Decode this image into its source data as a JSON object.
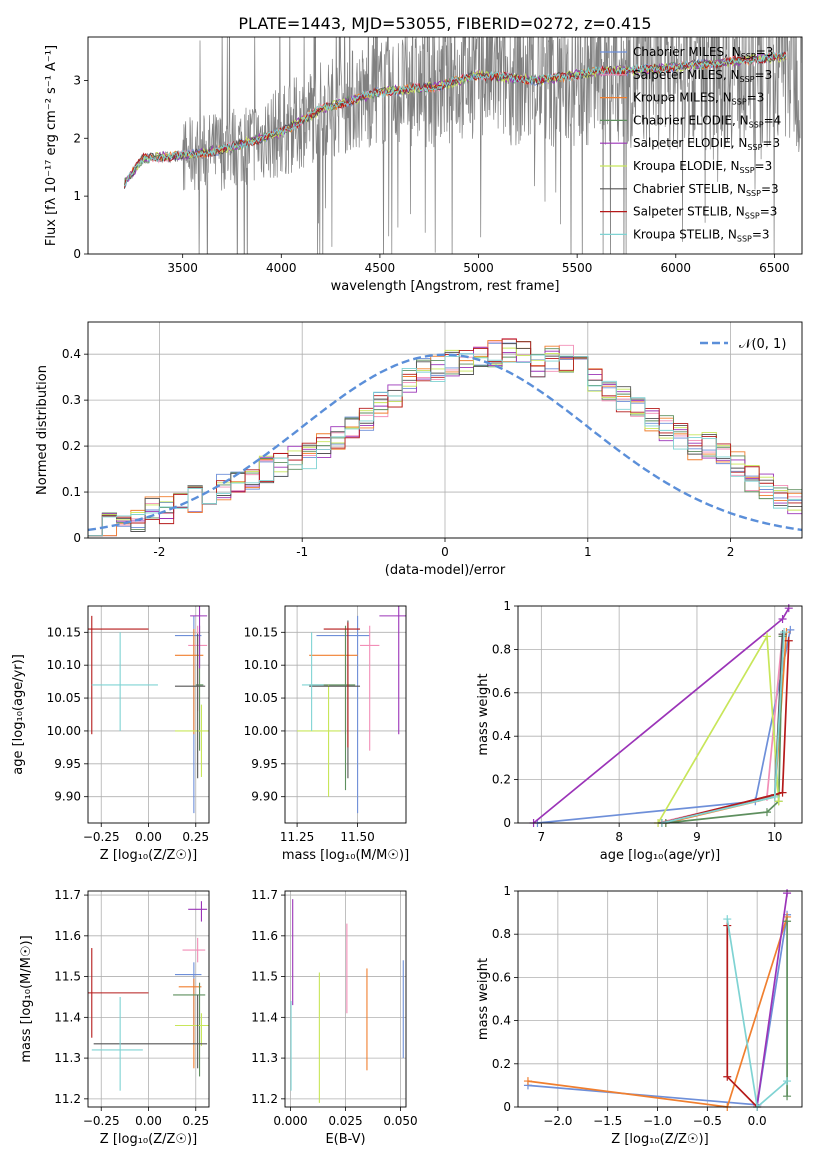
{
  "figure": {
    "title": "PLATE=1443, MJD=53055, FIBERID=0272, z=0.415"
  },
  "colors": {
    "Chabrier MILES": "#6e8fd9",
    "Salpeter MILES": "#f28eb7",
    "Kroupa MILES": "#f07f2f",
    "Chabrier ELODIE": "#5e8f5e",
    "Salpeter ELODIE": "#9b34b8",
    "Kroupa ELODIE": "#c8e65a",
    "Chabrier STELIB": "#555555",
    "Salpeter STELIB": "#b51a1a",
    "Kroupa STELIB": "#7fd3d3",
    "data": "#808080",
    "normal": "#5b8fd9"
  },
  "chart_data": [
    {
      "type": "line",
      "title": "PLATE=1443, MJD=53055, FIBERID=0272, z=0.415",
      "xlabel": "wavelength [Angstrom, rest frame]",
      "ylabel": "Flux [fλ 10⁻¹⁷ erg cm⁻² s⁻¹ A⁻¹]",
      "xlim": [
        3020,
        6640
      ],
      "ylim": [
        0,
        3.75
      ],
      "xticks": [
        3500,
        4000,
        4500,
        5000,
        5500,
        6000,
        6500
      ],
      "yticks": [
        0,
        1,
        2,
        3
      ],
      "legend_position": "top-right",
      "legend": [
        "Chabrier MILES, N_SSP=3",
        "Salpeter MILES, N_SSP=3",
        "Kroupa MILES, N_SSP=3",
        "Chabrier ELODIE, N_SSP=4",
        "Salpeter ELODIE, N_SSP=3",
        "Kroupa ELODIE, N_SSP=3",
        "Chabrier STELIB, N_SSP=3",
        "Salpeter STELIB, N_SSP=3",
        "Kroupa STELIB, N_SSP=3"
      ],
      "continuum_x": [
        3200,
        3300,
        3500,
        3700,
        3900,
        4000,
        4200,
        4500,
        4800,
        5000,
        5300,
        5600,
        5900,
        6200,
        6500
      ],
      "continuum_y": [
        1.2,
        1.65,
        1.7,
        1.8,
        2.0,
        2.1,
        2.5,
        2.8,
        2.9,
        3.1,
        3.0,
        3.15,
        3.2,
        3.3,
        3.4
      ],
      "noise_start": 3500
    },
    {
      "type": "bar",
      "title": "",
      "xlabel": "(data-model)/error",
      "ylabel": "Normed distribution",
      "xlim": [
        -2.5,
        2.5
      ],
      "ylim": [
        0,
        0.47
      ],
      "xticks": [
        -2,
        -1,
        0,
        1,
        2
      ],
      "yticks": [
        0.0,
        0.1,
        0.2,
        0.3,
        0.4
      ],
      "legend_position": "top-right",
      "legend": [
        "𝒩(0, 1)"
      ],
      "bin_width": 0.1,
      "bin_start": -2.5,
      "base_hist": [
        0.02,
        0.025,
        0.03,
        0.04,
        0.06,
        0.06,
        0.07,
        0.085,
        0.1,
        0.11,
        0.12,
        0.13,
        0.15,
        0.16,
        0.17,
        0.18,
        0.2,
        0.22,
        0.24,
        0.26,
        0.29,
        0.31,
        0.34,
        0.37,
        0.37,
        0.38,
        0.38,
        0.39,
        0.4,
        0.41,
        0.4,
        0.38,
        0.39,
        0.39,
        0.37,
        0.34,
        0.32,
        0.3,
        0.28,
        0.26,
        0.24,
        0.22,
        0.2,
        0.2,
        0.18,
        0.16,
        0.13,
        0.11,
        0.09,
        0.08,
        0.06,
        0.05,
        0.04,
        0.03,
        0.025,
        0.02,
        0.02,
        0.02
      ]
    },
    {
      "type": "scatter",
      "xlabel": "Z [log₁₀(Z/Z☉)]",
      "ylabel": "age  [log₁₀(age/yr)]",
      "xlim": [
        -0.32,
        0.32
      ],
      "ylim": [
        9.86,
        10.19
      ],
      "xticks": [
        -0.25,
        0.0,
        0.25
      ],
      "xticklabels": [
        "−0.25",
        "0.00",
        "0.25"
      ],
      "yticks": [
        9.9,
        9.95,
        10.0,
        10.05,
        10.1,
        10.15
      ],
      "yticklabels": [
        "9.90",
        "9.95",
        "10.00",
        "10.05",
        "10.10",
        "10.15"
      ],
      "points": [
        {
          "model": "Chabrier MILES",
          "x": 0.24,
          "y": 10.145,
          "xerr": [
            0.1,
            0.04
          ],
          "yerr": [
            0.27,
            0.03
          ]
        },
        {
          "model": "Salpeter MILES",
          "x": 0.26,
          "y": 10.13,
          "xerr": [
            0.05,
            0.05
          ],
          "yerr": [
            0.1,
            0.03
          ]
        },
        {
          "model": "Kroupa MILES",
          "x": 0.24,
          "y": 10.115,
          "xerr": [
            0.1,
            0.05
          ],
          "yerr": [
            0.12,
            0.04
          ]
        },
        {
          "model": "Chabrier ELODIE",
          "x": 0.27,
          "y": 10.07,
          "xerr": [
            0.02,
            0.02
          ],
          "yerr": [
            0.1,
            0.09
          ]
        },
        {
          "model": "Salpeter ELODIE",
          "x": 0.27,
          "y": 10.175,
          "xerr": [
            0.05,
            0.04
          ],
          "yerr": [
            0.08,
            0.02
          ]
        },
        {
          "model": "Kroupa ELODIE",
          "x": 0.28,
          "y": 10.0,
          "xerr": [
            0.14,
            0.05
          ],
          "yerr": [
            0.07,
            0.04
          ]
        },
        {
          "model": "Chabrier STELIB",
          "x": 0.26,
          "y": 10.068,
          "xerr": [
            0.12,
            0.04
          ],
          "yerr": [
            0.14,
            0.08
          ]
        },
        {
          "model": "Salpeter STELIB",
          "x": -0.3,
          "y": 10.155,
          "xerr": [
            0.02,
            0.3
          ],
          "yerr": [
            0.16,
            0.02
          ]
        },
        {
          "model": "Kroupa STELIB",
          "x": -0.15,
          "y": 10.07,
          "xerr": [
            0.15,
            0.2
          ],
          "yerr": [
            0.07,
            0.08
          ]
        }
      ]
    },
    {
      "type": "scatter",
      "xlabel": "mass [log₁₀(M/M☉)]",
      "ylabel": "",
      "xlim": [
        11.2,
        11.7
      ],
      "ylim": [
        9.86,
        10.19
      ],
      "xticks": [
        11.25,
        11.5
      ],
      "xticklabels": [
        "11.25",
        "11.50"
      ],
      "yticks": [
        9.9,
        9.95,
        10.0,
        10.05,
        10.1,
        10.15
      ],
      "yticklabels": [
        "9.90",
        "9.95",
        "10.00",
        "10.05",
        "10.10",
        "10.15"
      ],
      "points": [
        {
          "model": "Chabrier MILES",
          "x": 11.5,
          "y": 10.145,
          "xerr": [
            0.17,
            0.05
          ],
          "yerr": [
            0.27,
            0.03
          ]
        },
        {
          "model": "Salpeter MILES",
          "x": 11.55,
          "y": 10.13,
          "xerr": [
            0.04,
            0.04
          ],
          "yerr": [
            0.16,
            0.03
          ]
        },
        {
          "model": "Kroupa MILES",
          "x": 11.45,
          "y": 10.115,
          "xerr": [
            0.15,
            0.05
          ],
          "yerr": [
            0.12,
            0.04
          ]
        },
        {
          "model": "Chabrier ELODIE",
          "x": 11.45,
          "y": 10.07,
          "xerr": [
            0.15,
            0.04
          ],
          "yerr": [
            0.16,
            0.09
          ]
        },
        {
          "model": "Salpeter ELODIE",
          "x": 11.67,
          "y": 10.175,
          "xerr": [
            0.08,
            0.03
          ],
          "yerr": [
            0.18,
            0.02
          ]
        },
        {
          "model": "Kroupa ELODIE",
          "x": 11.38,
          "y": 10.0,
          "xerr": [
            0.13,
            0.05
          ],
          "yerr": [
            0.1,
            0.07
          ]
        },
        {
          "model": "Chabrier STELIB",
          "x": 11.46,
          "y": 10.068,
          "xerr": [
            0.16,
            0.05
          ],
          "yerr": [
            0.14,
            0.1
          ]
        },
        {
          "model": "Salpeter STELIB",
          "x": 11.46,
          "y": 10.155,
          "xerr": [
            0.1,
            0.05
          ],
          "yerr": [
            0.18,
            0.01
          ]
        },
        {
          "model": "Kroupa STELIB",
          "x": 11.31,
          "y": 10.07,
          "xerr": [
            0.04,
            0.05
          ],
          "yerr": [
            0.07,
            0.08
          ]
        }
      ]
    },
    {
      "type": "line",
      "xlabel": "age  [log₁₀(age/yr)]",
      "ylabel": "mass weight",
      "xlim": [
        6.7,
        10.35
      ],
      "ylim": [
        0,
        1.0
      ],
      "xticks": [
        7,
        8,
        9,
        10
      ],
      "yticks": [
        0.0,
        0.2,
        0.4,
        0.6,
        0.8,
        1.0
      ],
      "series": [
        {
          "model": "Chabrier MILES",
          "x": [
            6.95,
            9.75,
            10.2
          ],
          "y": [
            0.0,
            0.1,
            0.89
          ]
        },
        {
          "model": "Salpeter MILES",
          "x": [
            8.5,
            9.9,
            10.1
          ],
          "y": [
            0.0,
            0.12,
            0.87
          ]
        },
        {
          "model": "Kroupa MILES",
          "x": [
            8.6,
            10.0,
            10.15
          ],
          "y": [
            0.0,
            0.12,
            0.88
          ]
        },
        {
          "model": "Chabrier ELODIE",
          "x": [
            8.6,
            9.9,
            10.05,
            10.1
          ],
          "y": [
            0.0,
            0.05,
            0.1,
            0.86
          ]
        },
        {
          "model": "Salpeter ELODIE",
          "x": [
            6.9,
            10.1,
            10.18
          ],
          "y": [
            0.0,
            0.94,
            0.99
          ]
        },
        {
          "model": "Kroupa ELODIE",
          "x": [
            8.5,
            9.9,
            10.05
          ],
          "y": [
            0.0,
            0.86,
            0.1
          ]
        },
        {
          "model": "Chabrier STELIB",
          "x": [
            8.55,
            10.0,
            10.1
          ],
          "y": [
            0.0,
            0.13,
            0.87
          ]
        },
        {
          "model": "Salpeter STELIB",
          "x": [
            8.55,
            10.1,
            10.18
          ],
          "y": [
            0.0,
            0.14,
            0.84
          ]
        },
        {
          "model": "Kroupa STELIB",
          "x": [
            8.55,
            10.0,
            10.12
          ],
          "y": [
            0.0,
            0.12,
            0.88
          ]
        }
      ]
    },
    {
      "type": "scatter",
      "xlabel": "Z [log₁₀(Z/Z☉)]",
      "ylabel": "mass [log₁₀(M/M☉)]",
      "xlim": [
        -0.32,
        0.32
      ],
      "ylim": [
        11.18,
        11.71
      ],
      "xticks": [
        -0.25,
        0.0,
        0.25
      ],
      "xticklabels": [
        "−0.25",
        "0.00",
        "0.25"
      ],
      "yticks": [
        11.2,
        11.3,
        11.4,
        11.5,
        11.6,
        11.7
      ],
      "yticklabels": [
        "11.2",
        "11.3",
        "11.4",
        "11.5",
        "11.6",
        "11.7"
      ],
      "points": [
        {
          "model": "Chabrier MILES",
          "x": 0.24,
          "y": 11.505,
          "xerr": [
            0.1,
            0.04
          ],
          "yerr": [
            0.17,
            0.03
          ]
        },
        {
          "model": "Salpeter MILES",
          "x": 0.26,
          "y": 11.565,
          "xerr": [
            0.08,
            0.04
          ],
          "yerr": [
            0.03,
            0.03
          ]
        },
        {
          "model": "Kroupa MILES",
          "x": 0.24,
          "y": 11.475,
          "xerr": [
            0.08,
            0.04
          ],
          "yerr": [
            0.2,
            0.02
          ]
        },
        {
          "model": "Chabrier ELODIE",
          "x": 0.27,
          "y": 11.455,
          "xerr": [
            0.14,
            0.03
          ],
          "yerr": [
            0.2,
            0.03
          ]
        },
        {
          "model": "Salpeter ELODIE",
          "x": 0.28,
          "y": 11.665,
          "xerr": [
            0.07,
            0.03
          ],
          "yerr": [
            0.03,
            0.02
          ]
        },
        {
          "model": "Kroupa ELODIE",
          "x": 0.28,
          "y": 11.38,
          "xerr": [
            0.14,
            0.05
          ],
          "yerr": [
            0.05,
            0.03
          ]
        },
        {
          "model": "Chabrier STELIB",
          "x": 0.26,
          "y": 11.335,
          "xerr": [
            0.55,
            0.05
          ],
          "yerr": [
            0.06,
            0.12
          ]
        },
        {
          "model": "Salpeter STELIB",
          "x": -0.3,
          "y": 11.46,
          "xerr": [
            0.02,
            0.3
          ],
          "yerr": [
            0.11,
            0.11
          ]
        },
        {
          "model": "Kroupa STELIB",
          "x": -0.15,
          "y": 11.32,
          "xerr": [
            0.15,
            0.12
          ],
          "yerr": [
            0.1,
            0.13
          ]
        }
      ]
    },
    {
      "type": "scatter",
      "xlabel": "E(B-V)",
      "ylabel": "",
      "xlim": [
        -0.002,
        0.042
      ],
      "ylim": [
        11.18,
        11.71
      ],
      "xticks": [
        0.0,
        0.02,
        0.04
      ],
      "xticklabels": [
        "0.000",
        "0.025",
        "0.050"
      ],
      "yticks": [
        11.2,
        11.3,
        11.4,
        11.5,
        11.6,
        11.7
      ],
      "yticklabels": [
        "11.2",
        "11.3",
        "11.4",
        "11.5",
        "11.6",
        "11.7"
      ],
      "points": [
        {
          "model": "Chabrier MILES",
          "x": 0.041,
          "y": 11.42,
          "xerr": [
            0,
            0
          ],
          "yerr": [
            0.12,
            0.12
          ]
        },
        {
          "model": "Salpeter MILES",
          "x": 0.0205,
          "y": 11.52,
          "xerr": [
            0,
            0
          ],
          "yerr": [
            0.11,
            0.11
          ]
        },
        {
          "model": "Kroupa MILES",
          "x": 0.0278,
          "y": 11.395,
          "xerr": [
            0,
            0
          ],
          "yerr": [
            0.125,
            0.125
          ]
        },
        {
          "model": "Salpeter ELODIE",
          "x": 0.0008,
          "y": 11.56,
          "xerr": [
            0,
            0
          ],
          "yerr": [
            0.13,
            0.13
          ]
        },
        {
          "model": "Kroupa ELODIE",
          "x": 0.0105,
          "y": 11.35,
          "xerr": [
            0,
            0
          ],
          "yerr": [
            0.16,
            0.16
          ]
        },
        {
          "model": "Kroupa STELIB",
          "x": 0.0002,
          "y": 11.33,
          "xerr": [
            0,
            0
          ],
          "yerr": [
            0.11,
            0.11
          ]
        }
      ]
    },
    {
      "type": "line",
      "xlabel": "Z [log₁₀(Z/Z☉)]",
      "ylabel": "mass weight",
      "xlim": [
        -2.4,
        0.45
      ],
      "ylim": [
        0,
        1.0
      ],
      "xticks": [
        -2.0,
        -1.5,
        -1.0,
        -0.5,
        0.0
      ],
      "xticklabels": [
        "−2.0",
        "−1.5",
        "−1.0",
        "−0.5",
        "0.0"
      ],
      "yticks": [
        0.0,
        0.2,
        0.4,
        0.6,
        0.8,
        1.0
      ],
      "series": [
        {
          "model": "Chabrier MILES",
          "x": [
            -2.3,
            0.0,
            0.3
          ],
          "y": [
            0.1,
            0.01,
            0.89
          ]
        },
        {
          "model": "Kroupa MILES",
          "x": [
            -2.3,
            -0.3,
            0.3
          ],
          "y": [
            0.12,
            0.0,
            0.88
          ]
        },
        {
          "model": "Salpeter ELODIE",
          "x": [
            0.0,
            0.3
          ],
          "y": [
            0.01,
            0.99
          ]
        },
        {
          "model": "Chabrier ELODIE",
          "x": [
            0.3,
            0.3
          ],
          "y": [
            0.05,
            0.86
          ]
        },
        {
          "model": "Salpeter STELIB",
          "x": [
            -0.3,
            -0.3,
            0.0
          ],
          "y": [
            0.84,
            0.14,
            0.0
          ]
        },
        {
          "model": "Kroupa STELIB",
          "x": [
            -0.3,
            0.0,
            0.3
          ],
          "y": [
            0.87,
            0.0,
            0.12
          ]
        }
      ]
    }
  ]
}
